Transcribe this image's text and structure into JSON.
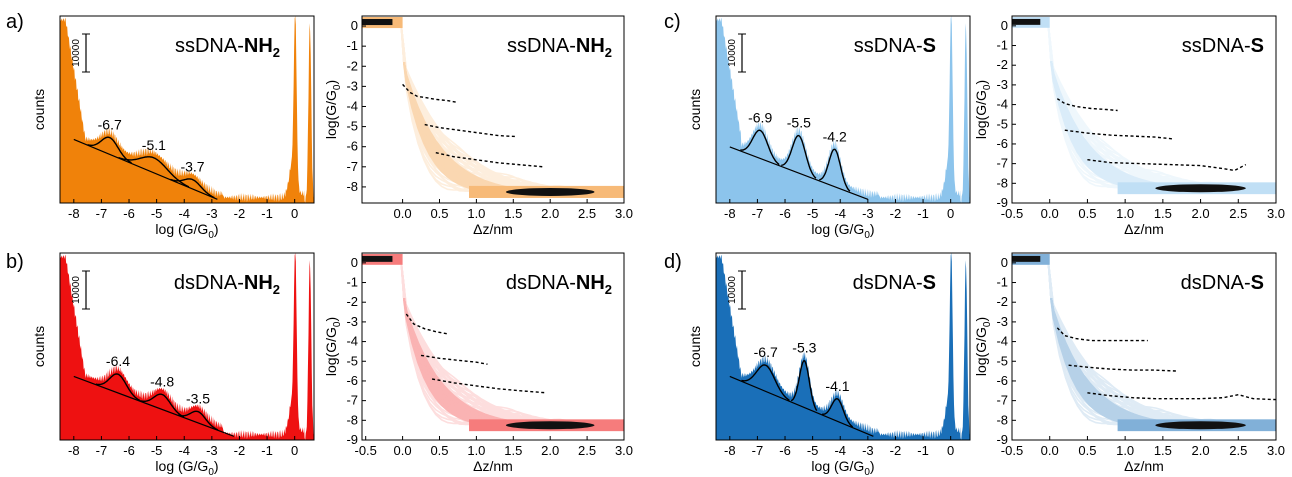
{
  "panel_letters": [
    "a)",
    "b)",
    "c)",
    "d)"
  ],
  "hist_xlabel": "log (G/G",
  "hist_xlabel_sub": "0",
  "hist_ylabel": "counts",
  "scalebar_label": "10000",
  "trace_xlabel": "Δz/nm",
  "trace_ylabel": "log(G/G",
  "trace_ylabel_sub": "0",
  "colors": {
    "orange": "#f0820a",
    "red": "#ee1111",
    "lightblue": "#8cc4ec",
    "darkblue": "#1a6fb8"
  },
  "chart_data": [
    {
      "id": "a-hist",
      "panel": "a)",
      "type": "area",
      "title_prefix": "ssDNA-",
      "title_bold": "NH",
      "title_sub": "2",
      "color": "orange",
      "xlim": [
        -8.5,
        0.7
      ],
      "xticks": [
        "-8",
        "-7",
        "-6",
        "-5",
        "-4",
        "-3",
        "-2",
        "-1",
        "0"
      ],
      "peaks": [
        {
          "label": "-6.7",
          "x": -6.7,
          "height": 0.09,
          "width": 0.5
        },
        {
          "label": "-5.1",
          "x": -5.1,
          "height": 0.08,
          "width": 0.8
        },
        {
          "label": "-3.7",
          "x": -3.7,
          "height": 0.05,
          "width": 0.5
        }
      ],
      "baseline": {
        "x": [
          -8.0,
          -2.8
        ],
        "y": [
          0.34,
          0.02
        ]
      }
    },
    {
      "id": "a-trace",
      "type": "heatmap",
      "title_prefix": "ssDNA-",
      "title_bold": "NH",
      "title_sub": "2",
      "color": "orange",
      "xlim": [
        -0.55,
        3.0
      ],
      "ylim": [
        -8.8,
        0.5
      ],
      "xticks": [
        "0.0",
        "0.5",
        "1.0",
        "1.5",
        "2.0",
        "2.5",
        "3.0"
      ],
      "yticks": [
        "0",
        "-1",
        "-2",
        "-3",
        "-4",
        "-5",
        "-6",
        "-7",
        "-8"
      ],
      "plateaus": [
        {
          "x": [
            0.0,
            0.1,
            0.2,
            0.3,
            0.45,
            0.6,
            0.75
          ],
          "y": [
            -2.9,
            -3.3,
            -3.5,
            -3.55,
            -3.65,
            -3.7,
            -3.8
          ]
        },
        {
          "x": [
            0.3,
            0.5,
            0.7,
            0.9,
            1.1,
            1.3,
            1.55
          ],
          "y": [
            -4.9,
            -5.05,
            -5.15,
            -5.25,
            -5.35,
            -5.45,
            -5.5
          ]
        },
        {
          "x": [
            0.45,
            0.7,
            1.0,
            1.3,
            1.6,
            1.9
          ],
          "y": [
            -6.3,
            -6.5,
            -6.65,
            -6.8,
            -6.9,
            -7.0
          ]
        }
      ]
    },
    {
      "id": "b-hist",
      "panel": "b)",
      "type": "area",
      "title_prefix": "dsDNA-",
      "title_bold": "NH",
      "title_sub": "2",
      "color": "red",
      "xlim": [
        -8.5,
        0.7
      ],
      "xticks": [
        "-8",
        "-7",
        "-6",
        "-5",
        "-4",
        "-3",
        "-2",
        "-1",
        "0"
      ],
      "peaks": [
        {
          "label": "-6.4",
          "x": -6.4,
          "height": 0.1,
          "width": 0.5
        },
        {
          "label": "-4.8",
          "x": -4.8,
          "height": 0.08,
          "width": 0.5
        },
        {
          "label": "-3.5",
          "x": -3.5,
          "height": 0.06,
          "width": 0.45
        }
      ],
      "baseline": {
        "x": [
          -8.0,
          -2.2
        ],
        "y": [
          0.34,
          0.02
        ]
      }
    },
    {
      "id": "b-trace",
      "type": "heatmap",
      "title_prefix": "dsDNA-",
      "title_bold": "NH",
      "title_sub": "2",
      "color": "red",
      "xlim": [
        -0.55,
        3.0
      ],
      "ylim": [
        -9.0,
        0.5
      ],
      "xticks": [
        "-0.5",
        "0.0",
        "0.5",
        "1.0",
        "1.5",
        "2.0",
        "2.5",
        "3.0"
      ],
      "yticks": [
        "0",
        "-1",
        "-2",
        "-3",
        "-4",
        "-5",
        "-6",
        "-7",
        "-8",
        "-9"
      ],
      "plateaus": [
        {
          "x": [
            0.05,
            0.15,
            0.3,
            0.45,
            0.6
          ],
          "y": [
            -2.6,
            -3.1,
            -3.35,
            -3.5,
            -3.6
          ]
        },
        {
          "x": [
            0.25,
            0.5,
            0.75,
            1.0,
            1.15
          ],
          "y": [
            -4.7,
            -4.85,
            -4.95,
            -5.05,
            -5.15
          ]
        },
        {
          "x": [
            0.4,
            0.7,
            1.0,
            1.3,
            1.6,
            1.95
          ],
          "y": [
            -5.9,
            -6.1,
            -6.25,
            -6.4,
            -6.5,
            -6.6
          ]
        }
      ]
    },
    {
      "id": "c-hist",
      "panel": "c)",
      "type": "area",
      "title_prefix": "ssDNA-",
      "title_bold": "S",
      "title_sub": "",
      "color": "lightblue",
      "xlim": [
        -8.5,
        0.7
      ],
      "xticks": [
        "-8",
        "-7",
        "-6",
        "-5",
        "-4",
        "-3",
        "-2",
        "-1",
        "0"
      ],
      "peaks": [
        {
          "label": "-6.9",
          "x": -6.9,
          "height": 0.15,
          "width": 0.45
        },
        {
          "label": "-5.5",
          "x": -5.5,
          "height": 0.2,
          "width": 0.4
        },
        {
          "label": "-4.2",
          "x": -4.2,
          "height": 0.2,
          "width": 0.35
        }
      ],
      "baseline": {
        "x": [
          -8.0,
          -3.0
        ],
        "y": [
          0.3,
          0.02
        ]
      }
    },
    {
      "id": "c-trace",
      "type": "heatmap",
      "title_prefix": "ssDNA-",
      "title_bold": "S",
      "title_sub": "",
      "color": "lightblue",
      "xlim": [
        -0.5,
        3.0
      ],
      "ylim": [
        -9.0,
        0.5
      ],
      "xticks": [
        "-0.5",
        "0.0",
        "0.5",
        "1.0",
        "1.5",
        "2.0",
        "2.5",
        "3.0"
      ],
      "yticks": [
        "0",
        "-1",
        "-2",
        "-3",
        "-4",
        "-5",
        "-6",
        "-7",
        "-8",
        "-9"
      ],
      "plateaus": [
        {
          "x": [
            0.1,
            0.2,
            0.35,
            0.55,
            0.75,
            0.9
          ],
          "y": [
            -3.7,
            -3.95,
            -4.1,
            -4.2,
            -4.25,
            -4.3
          ]
        },
        {
          "x": [
            0.2,
            0.5,
            0.8,
            1.1,
            1.4,
            1.65
          ],
          "y": [
            -5.3,
            -5.45,
            -5.55,
            -5.6,
            -5.65,
            -5.75
          ]
        },
        {
          "x": [
            0.5,
            0.8,
            1.2,
            1.6,
            2.0,
            2.3,
            2.45,
            2.6
          ],
          "y": [
            -6.8,
            -6.95,
            -7.0,
            -7.05,
            -7.1,
            -7.25,
            -7.35,
            -7.05
          ]
        }
      ]
    },
    {
      "id": "d-hist",
      "panel": "d)",
      "type": "area",
      "title_prefix": "dsDNA-",
      "title_bold": "S",
      "title_sub": "",
      "color": "darkblue",
      "xlim": [
        -8.5,
        0.7
      ],
      "xticks": [
        "-8",
        "-7",
        "-6",
        "-5",
        "-4",
        "-3",
        "-2",
        "-1",
        "0"
      ],
      "peaks": [
        {
          "label": "-6.7",
          "x": -6.7,
          "height": 0.14,
          "width": 0.55
        },
        {
          "label": "-5.3",
          "x": -5.3,
          "height": 0.25,
          "width": 0.3
        },
        {
          "label": "-4.1",
          "x": -4.1,
          "height": 0.12,
          "width": 0.35
        }
      ],
      "baseline": {
        "x": [
          -8.0,
          -2.8
        ],
        "y": [
          0.34,
          0.02
        ]
      }
    },
    {
      "id": "d-trace",
      "type": "heatmap",
      "title_prefix": "dsDNA-",
      "title_bold": "S",
      "title_sub": "",
      "color": "darkblue",
      "xlim": [
        -0.5,
        3.0
      ],
      "ylim": [
        -9.0,
        0.5
      ],
      "xticks": [
        "-0.5",
        "0.0",
        "0.5",
        "1.0",
        "1.5",
        "2.0",
        "2.5",
        "3.0"
      ],
      "yticks": [
        "0",
        "-1",
        "-2",
        "-3",
        "-4",
        "-5",
        "-6",
        "-7",
        "-8",
        "-9"
      ],
      "plateaus": [
        {
          "x": [
            0.1,
            0.2,
            0.35,
            0.55,
            0.8,
            1.05,
            1.3
          ],
          "y": [
            -3.3,
            -3.7,
            -3.85,
            -3.95,
            -3.95,
            -3.95,
            -3.95
          ]
        },
        {
          "x": [
            0.25,
            0.5,
            0.8,
            1.1,
            1.4,
            1.7
          ],
          "y": [
            -5.2,
            -5.3,
            -5.4,
            -5.45,
            -5.45,
            -5.5
          ]
        },
        {
          "x": [
            0.5,
            0.8,
            1.1,
            1.4,
            1.7,
            2.0,
            2.3,
            2.5,
            2.7,
            3.0
          ],
          "y": [
            -6.6,
            -6.75,
            -6.85,
            -6.9,
            -6.9,
            -6.9,
            -6.85,
            -6.7,
            -6.9,
            -6.95
          ]
        }
      ]
    }
  ]
}
